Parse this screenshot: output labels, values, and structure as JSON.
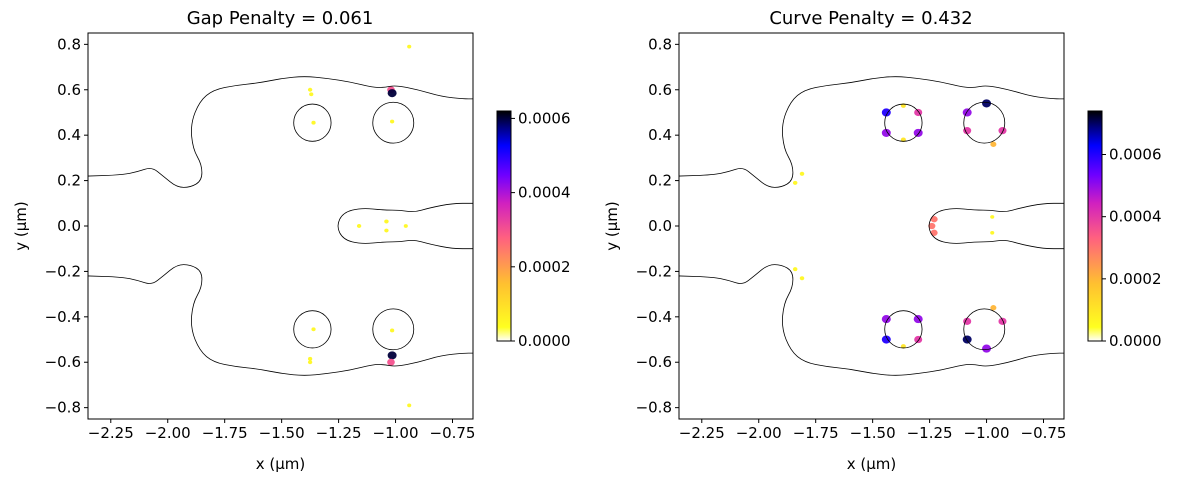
{
  "chart_data": [
    {
      "type": "heatmap",
      "title": "Gap Penalty = 0.061",
      "xlabel": "x (μm)",
      "ylabel": "y (μm)",
      "xlim": [
        -2.35,
        -0.66
      ],
      "ylim": [
        -0.85,
        0.85
      ],
      "xticks": [
        -2.25,
        -2.0,
        -1.75,
        -1.5,
        -1.25,
        -1.0,
        -0.75
      ],
      "xtick_labels": [
        "−2.25",
        "−2.00",
        "−1.75",
        "−1.50",
        "−1.25",
        "−1.00",
        "−0.75"
      ],
      "yticks": [
        -0.8,
        -0.6,
        -0.4,
        -0.2,
        0.0,
        0.2,
        0.4,
        0.6,
        0.8
      ],
      "ytick_labels": [
        "−0.8",
        "−0.6",
        "−0.4",
        "−0.2",
        "0.0",
        "0.2",
        "0.4",
        "0.6",
        "0.8"
      ],
      "colorbar": {
        "range": [
          0,
          0.00062
        ],
        "ticks": [
          0,
          0.0002,
          0.0004,
          0.0006
        ],
        "tick_labels": [
          "0.0000",
          "0.0002",
          "0.0004",
          "0.0006"
        ],
        "colormap": "gnuplot2_r"
      },
      "hotspots": [
        {
          "x": -1.375,
          "y": 0.6,
          "value": 3e-05
        },
        {
          "x": -1.37,
          "y": 0.58,
          "value": 2e-05
        },
        {
          "x": -1.36,
          "y": 0.455,
          "value": 2e-05
        },
        {
          "x": -1.02,
          "y": 0.6,
          "value": 0.0003
        },
        {
          "x": -1.015,
          "y": 0.585,
          "value": 0.0006
        },
        {
          "x": -1.015,
          "y": 0.46,
          "value": 2e-05
        },
        {
          "x": -1.16,
          "y": 0.0,
          "value": 3e-05
        },
        {
          "x": -1.04,
          "y": 0.02,
          "value": 4e-05
        },
        {
          "x": -1.04,
          "y": -0.02,
          "value": 3e-05
        },
        {
          "x": -0.955,
          "y": 0.0,
          "value": 1e-05
        },
        {
          "x": -1.36,
          "y": -0.455,
          "value": 2e-05
        },
        {
          "x": -1.375,
          "y": -0.585,
          "value": 2e-05
        },
        {
          "x": -1.375,
          "y": -0.6,
          "value": 3e-05
        },
        {
          "x": -1.015,
          "y": -0.46,
          "value": 2e-05
        },
        {
          "x": -1.015,
          "y": -0.57,
          "value": 0.0006
        },
        {
          "x": -1.02,
          "y": -0.6,
          "value": 0.0003
        },
        {
          "x": -0.94,
          "y": 0.79,
          "value": 1e-05
        },
        {
          "x": -0.94,
          "y": -0.79,
          "value": 1e-05
        }
      ],
      "contours": [
        {
          "name": "outer-top",
          "closed": false,
          "points": [
            [
              -2.35,
              0.22
            ],
            [
              -2.2,
              0.225
            ],
            [
              -2.13,
              0.24
            ],
            [
              -2.07,
              0.26
            ],
            [
              -2.02,
              0.22
            ],
            [
              -1.96,
              0.17
            ],
            [
              -1.9,
              0.17
            ],
            [
              -1.85,
              0.2
            ],
            [
              -1.85,
              0.27
            ],
            [
              -1.89,
              0.34
            ],
            [
              -1.9,
              0.45
            ],
            [
              -1.86,
              0.55
            ],
            [
              -1.8,
              0.6
            ],
            [
              -1.7,
              0.62
            ],
            [
              -1.6,
              0.63
            ],
            [
              -1.5,
              0.65
            ],
            [
              -1.4,
              0.66
            ],
            [
              -1.3,
              0.65
            ],
            [
              -1.2,
              0.635
            ],
            [
              -1.1,
              0.61
            ],
            [
              -1.05,
              0.61
            ],
            [
              -1.0,
              0.62
            ],
            [
              -0.9,
              0.6
            ],
            [
              -0.8,
              0.57
            ],
            [
              -0.7,
              0.56
            ],
            [
              -0.66,
              0.56
            ]
          ]
        },
        {
          "name": "outer-bottom",
          "closed": false,
          "points": [
            [
              -2.35,
              -0.22
            ],
            [
              -2.2,
              -0.225
            ],
            [
              -2.13,
              -0.24
            ],
            [
              -2.07,
              -0.26
            ],
            [
              -2.02,
              -0.22
            ],
            [
              -1.96,
              -0.17
            ],
            [
              -1.9,
              -0.17
            ],
            [
              -1.85,
              -0.2
            ],
            [
              -1.85,
              -0.27
            ],
            [
              -1.89,
              -0.34
            ],
            [
              -1.9,
              -0.45
            ],
            [
              -1.86,
              -0.55
            ],
            [
              -1.8,
              -0.6
            ],
            [
              -1.7,
              -0.62
            ],
            [
              -1.6,
              -0.63
            ],
            [
              -1.5,
              -0.65
            ],
            [
              -1.4,
              -0.66
            ],
            [
              -1.3,
              -0.65
            ],
            [
              -1.2,
              -0.635
            ],
            [
              -1.1,
              -0.61
            ],
            [
              -1.05,
              -0.61
            ],
            [
              -1.0,
              -0.62
            ],
            [
              -0.9,
              -0.6
            ],
            [
              -0.8,
              -0.57
            ],
            [
              -0.7,
              -0.56
            ],
            [
              -0.66,
              -0.56
            ]
          ]
        },
        {
          "name": "center-finger",
          "closed": false,
          "points": [
            [
              -0.66,
              0.1
            ],
            [
              -0.75,
              0.1
            ],
            [
              -0.85,
              0.08
            ],
            [
              -0.92,
              0.06
            ],
            [
              -0.98,
              0.07
            ],
            [
              -1.05,
              0.07
            ],
            [
              -1.15,
              0.08
            ],
            [
              -1.23,
              0.06
            ],
            [
              -1.26,
              0.0
            ],
            [
              -1.23,
              -0.06
            ],
            [
              -1.15,
              -0.08
            ],
            [
              -1.05,
              -0.07
            ],
            [
              -0.98,
              -0.07
            ],
            [
              -0.92,
              -0.06
            ],
            [
              -0.85,
              -0.08
            ],
            [
              -0.75,
              -0.1
            ],
            [
              -0.66,
              -0.1
            ]
          ]
        },
        {
          "name": "hole-left-top",
          "closed": true,
          "center": [
            -1.365,
            0.455
          ],
          "rx": 0.082,
          "ry": 0.082
        },
        {
          "name": "hole-right-top",
          "closed": true,
          "center": [
            -1.01,
            0.455
          ],
          "rx": 0.09,
          "ry": 0.09
        },
        {
          "name": "hole-left-bottom",
          "closed": true,
          "center": [
            -1.365,
            -0.455
          ],
          "rx": 0.082,
          "ry": 0.082
        },
        {
          "name": "hole-right-bottom",
          "closed": true,
          "center": [
            -1.01,
            -0.455
          ],
          "rx": 0.09,
          "ry": 0.09
        }
      ]
    },
    {
      "type": "heatmap",
      "title": "Curve Penalty = 0.432",
      "xlabel": "x (μm)",
      "ylabel": "y (μm)",
      "xlim": [
        -2.35,
        -0.66
      ],
      "ylim": [
        -0.85,
        0.85
      ],
      "xticks": [
        -2.25,
        -2.0,
        -1.75,
        -1.5,
        -1.25,
        -1.0,
        -0.75
      ],
      "xtick_labels": [
        "−2.25",
        "−2.00",
        "−1.75",
        "−1.50",
        "−1.25",
        "−1.00",
        "−0.75"
      ],
      "yticks": [
        -0.8,
        -0.6,
        -0.4,
        -0.2,
        0.0,
        0.2,
        0.4,
        0.6,
        0.8
      ],
      "ytick_labels": [
        "−0.8",
        "−0.6",
        "−0.4",
        "−0.2",
        "0.0",
        "0.2",
        "0.4",
        "0.6",
        "0.8"
      ],
      "colorbar": {
        "range": [
          0,
          0.00074
        ],
        "ticks": [
          0,
          0.0002,
          0.0004,
          0.0006
        ],
        "tick_labels": [
          "0.0000",
          "0.0002",
          "0.0004",
          "0.0006"
        ],
        "colormap": "gnuplot2_r"
      },
      "hotspots": [
        {
          "x": -1.44,
          "y": 0.5,
          "value": 0.0006
        },
        {
          "x": -1.3,
          "y": 0.5,
          "value": 0.0004
        },
        {
          "x": -1.44,
          "y": 0.41,
          "value": 0.0005
        },
        {
          "x": -1.3,
          "y": 0.41,
          "value": 0.0005
        },
        {
          "x": -1.365,
          "y": 0.53,
          "value": 0.0001
        },
        {
          "x": -1.365,
          "y": 0.38,
          "value": 0.0001
        },
        {
          "x": -1.085,
          "y": 0.5,
          "value": 0.0005
        },
        {
          "x": -1.0,
          "y": 0.54,
          "value": 0.0007
        },
        {
          "x": -1.085,
          "y": 0.42,
          "value": 0.0004
        },
        {
          "x": -0.93,
          "y": 0.42,
          "value": 0.0004
        },
        {
          "x": -0.97,
          "y": 0.36,
          "value": 0.0002
        },
        {
          "x": -1.44,
          "y": -0.41,
          "value": 0.0005
        },
        {
          "x": -1.3,
          "y": -0.41,
          "value": 0.0005
        },
        {
          "x": -1.44,
          "y": -0.5,
          "value": 0.0006
        },
        {
          "x": -1.3,
          "y": -0.5,
          "value": 0.0004
        },
        {
          "x": -1.365,
          "y": -0.53,
          "value": 0.0001
        },
        {
          "x": -1.085,
          "y": -0.42,
          "value": 0.0004
        },
        {
          "x": -0.93,
          "y": -0.42,
          "value": 0.0004
        },
        {
          "x": -1.085,
          "y": -0.5,
          "value": 0.0007
        },
        {
          "x": -1.0,
          "y": -0.54,
          "value": 0.0005
        },
        {
          "x": -0.97,
          "y": -0.36,
          "value": 0.0002
        },
        {
          "x": -1.23,
          "y": 0.03,
          "value": 0.0003
        },
        {
          "x": -1.24,
          "y": 0.0,
          "value": 0.0003
        },
        {
          "x": -1.23,
          "y": -0.03,
          "value": 0.0003
        },
        {
          "x": -1.84,
          "y": 0.19,
          "value": 5e-05
        },
        {
          "x": -1.81,
          "y": 0.23,
          "value": 5e-05
        },
        {
          "x": -1.84,
          "y": -0.19,
          "value": 5e-05
        },
        {
          "x": -1.81,
          "y": -0.23,
          "value": 5e-05
        },
        {
          "x": -0.975,
          "y": 0.04,
          "value": 1e-05
        },
        {
          "x": -0.975,
          "y": -0.03,
          "value": 1e-05
        }
      ],
      "contours": [
        {
          "name": "outer-top",
          "closed": false,
          "points": [
            [
              -2.35,
              0.22
            ],
            [
              -2.2,
              0.225
            ],
            [
              -2.13,
              0.24
            ],
            [
              -2.07,
              0.26
            ],
            [
              -2.02,
              0.22
            ],
            [
              -1.96,
              0.17
            ],
            [
              -1.9,
              0.17
            ],
            [
              -1.85,
              0.2
            ],
            [
              -1.85,
              0.27
            ],
            [
              -1.89,
              0.34
            ],
            [
              -1.9,
              0.45
            ],
            [
              -1.86,
              0.55
            ],
            [
              -1.8,
              0.6
            ],
            [
              -1.7,
              0.62
            ],
            [
              -1.6,
              0.63
            ],
            [
              -1.5,
              0.65
            ],
            [
              -1.4,
              0.66
            ],
            [
              -1.3,
              0.65
            ],
            [
              -1.2,
              0.635
            ],
            [
              -1.1,
              0.61
            ],
            [
              -1.05,
              0.61
            ],
            [
              -1.0,
              0.62
            ],
            [
              -0.9,
              0.6
            ],
            [
              -0.8,
              0.57
            ],
            [
              -0.7,
              0.56
            ],
            [
              -0.66,
              0.56
            ]
          ]
        },
        {
          "name": "outer-bottom",
          "closed": false,
          "points": [
            [
              -2.35,
              -0.22
            ],
            [
              -2.2,
              -0.225
            ],
            [
              -2.13,
              -0.24
            ],
            [
              -2.07,
              -0.26
            ],
            [
              -2.02,
              -0.22
            ],
            [
              -1.96,
              -0.17
            ],
            [
              -1.9,
              -0.17
            ],
            [
              -1.85,
              -0.2
            ],
            [
              -1.85,
              -0.27
            ],
            [
              -1.89,
              -0.34
            ],
            [
              -1.9,
              -0.45
            ],
            [
              -1.86,
              -0.55
            ],
            [
              -1.8,
              -0.6
            ],
            [
              -1.7,
              -0.62
            ],
            [
              -1.6,
              -0.63
            ],
            [
              -1.5,
              -0.65
            ],
            [
              -1.4,
              -0.66
            ],
            [
              -1.3,
              -0.65
            ],
            [
              -1.2,
              -0.635
            ],
            [
              -1.1,
              -0.61
            ],
            [
              -1.05,
              -0.61
            ],
            [
              -1.0,
              -0.62
            ],
            [
              -0.9,
              -0.6
            ],
            [
              -0.8,
              -0.57
            ],
            [
              -0.7,
              -0.56
            ],
            [
              -0.66,
              -0.56
            ]
          ]
        },
        {
          "name": "center-finger",
          "closed": false,
          "points": [
            [
              -0.66,
              0.1
            ],
            [
              -0.75,
              0.1
            ],
            [
              -0.85,
              0.08
            ],
            [
              -0.92,
              0.06
            ],
            [
              -0.98,
              0.07
            ],
            [
              -1.05,
              0.07
            ],
            [
              -1.15,
              0.08
            ],
            [
              -1.23,
              0.06
            ],
            [
              -1.26,
              0.0
            ],
            [
              -1.23,
              -0.06
            ],
            [
              -1.15,
              -0.08
            ],
            [
              -1.05,
              -0.07
            ],
            [
              -0.98,
              -0.07
            ],
            [
              -0.92,
              -0.06
            ],
            [
              -0.85,
              -0.08
            ],
            [
              -0.75,
              -0.1
            ],
            [
              -0.66,
              -0.1
            ]
          ]
        },
        {
          "name": "hole-left-top",
          "closed": true,
          "center": [
            -1.365,
            0.455
          ],
          "rx": 0.082,
          "ry": 0.082
        },
        {
          "name": "hole-right-top",
          "closed": true,
          "center": [
            -1.01,
            0.455
          ],
          "rx": 0.09,
          "ry": 0.09
        },
        {
          "name": "hole-left-bottom",
          "closed": true,
          "center": [
            -1.365,
            -0.455
          ],
          "rx": 0.082,
          "ry": 0.082
        },
        {
          "name": "hole-right-bottom",
          "closed": true,
          "center": [
            -1.01,
            -0.455
          ],
          "rx": 0.09,
          "ry": 0.09
        }
      ]
    }
  ]
}
